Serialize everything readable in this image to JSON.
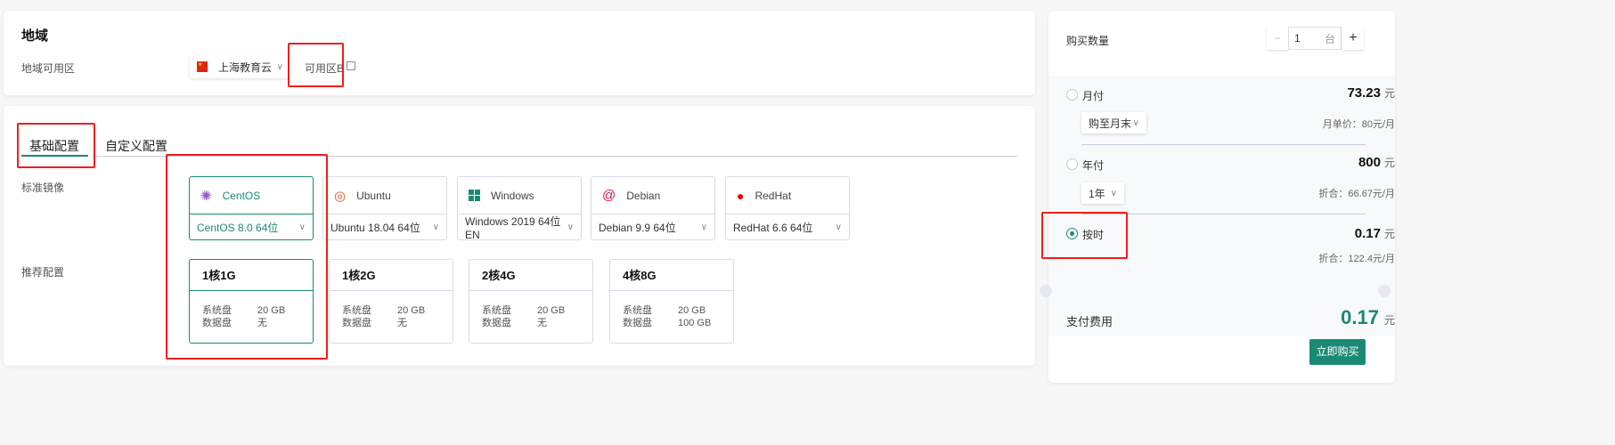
{
  "region": {
    "title": "地域",
    "label": "地域可用区",
    "region_select": "上海教育云",
    "zone": "可用区B",
    "flag_icon": "china-flag-icon",
    "external_icon": "external-link-icon"
  },
  "config": {
    "tabs": [
      {
        "label": "基础配置",
        "active": true
      },
      {
        "label": "自定义配置",
        "active": false
      }
    ],
    "image_label": "标准镜像",
    "images": [
      {
        "name": "CentOS",
        "version": "CentOS 8.0 64位",
        "icon": "centos-icon",
        "active": true
      },
      {
        "name": "Ubuntu",
        "version": "Ubuntu 18.04 64位",
        "icon": "ubuntu-icon",
        "active": false
      },
      {
        "name": "Windows",
        "version": "Windows 2019 64位 EN",
        "icon": "windows-icon",
        "active": false
      },
      {
        "name": "Debian",
        "version": "Debian 9.9 64位",
        "icon": "debian-icon",
        "active": false
      },
      {
        "name": "RedHat",
        "version": "RedHat 6.6 64位",
        "icon": "redhat-icon",
        "active": false
      }
    ],
    "spec_label": "推荐配置",
    "sys_disk_label": "系统盘",
    "data_disk_label": "数据盘",
    "specs": [
      {
        "name": "1核1G",
        "sys": "20 GB",
        "data": "无",
        "active": true
      },
      {
        "name": "1核2G",
        "sys": "20 GB",
        "data": "无",
        "active": false
      },
      {
        "name": "2核4G",
        "sys": "20 GB",
        "data": "无",
        "active": false
      },
      {
        "name": "4核8G",
        "sys": "20 GB",
        "data": "100 GB",
        "active": false
      }
    ]
  },
  "order": {
    "qty_label": "购买数量",
    "qty_value": "1",
    "qty_unit": "台",
    "minus": "−",
    "plus": "+",
    "currency": "元",
    "monthly": {
      "label": "月付",
      "price": "73.23",
      "select": "购至月末",
      "note": "月单价：80元/月"
    },
    "yearly": {
      "label": "年付",
      "price": "800",
      "select": "1年",
      "note": "折合：66.67元/月"
    },
    "hourly": {
      "label": "按时",
      "price": "0.17",
      "note": "折合：122.4元/月",
      "selected": true
    },
    "total_label": "支付费用",
    "total": "0.17",
    "buy_button": "立即购买"
  },
  "colors": {
    "accent": "#1a8a74",
    "highlight": "#f01e1e"
  }
}
